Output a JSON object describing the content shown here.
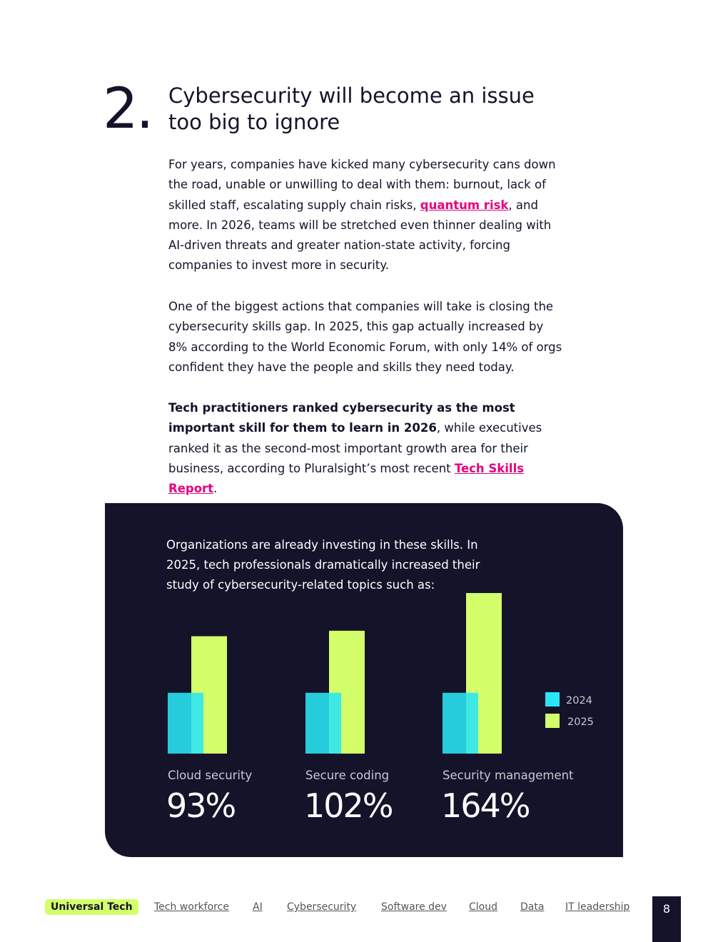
{
  "section": {
    "number": "2.",
    "title": "Cybersecurity will become an issue too big to ignore"
  },
  "paragraphs": [
    [
      {
        "text": "For years, companies have kicked many cybersecurity cans down the road, unable or unwilling to deal with them: burnout, lack of skilled staff, escalating supply chain risks, "
      },
      {
        "text": "quantum risk",
        "link": true
      },
      {
        "text": ", and more. In 2026, teams will be stretched even thinner dealing with AI-driven threats and greater nation-state activity, forcing companies to invest more in security."
      }
    ],
    [
      {
        "text": "One of the biggest actions that companies will take is closing the cybersecurity skills gap. In 2025, this gap actually increased by 8% according to the World Economic Forum, with only 14% of orgs confident they have the people and skills they need today."
      }
    ],
    [
      {
        "text": "Tech practitioners ranked cybersecurity as the most important skill for them to learn in 2026",
        "bold": true
      },
      {
        "text": ", while executives ranked it as the second-most important growth area for their business, according to Pluralsight’s most recent "
      },
      {
        "text": "Tech Skills Report",
        "link": true
      },
      {
        "text": "."
      }
    ]
  ],
  "chart_data": {
    "type": "bar",
    "subtitle": "Organizations are already investing in these skills. In 2025, tech professionals dramatically increased their study of cybersecurity-related topics such as:",
    "categories": [
      "Cloud security",
      "Secure coding",
      "Security management"
    ],
    "series": [
      {
        "name": "2024",
        "color": "#29e6f5",
        "values": [
          100,
          100,
          100
        ]
      },
      {
        "name": "2025",
        "color": "#d4ff6a",
        "values": [
          193,
          202,
          264
        ]
      }
    ],
    "increase_labels": [
      "93%",
      "102%",
      "164%"
    ]
  },
  "footer": {
    "active": "Universal Tech",
    "links": [
      "Tech workforce",
      "AI",
      "Cybersecurity",
      "Software dev",
      "Cloud",
      "Data",
      "IT leadership"
    ],
    "page": "8"
  }
}
